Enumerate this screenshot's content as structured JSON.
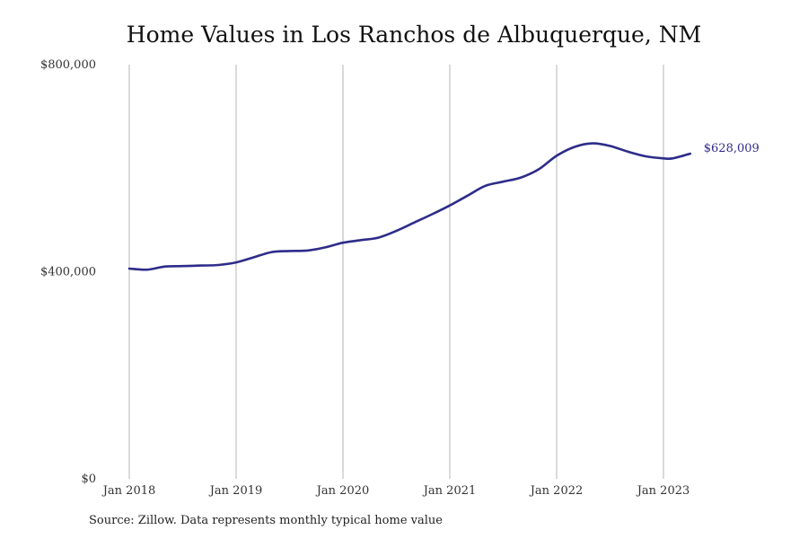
{
  "chart_data": {
    "type": "line",
    "title": "Home Values in Los Ranchos de Albuquerque, NM",
    "xlabel": "",
    "ylabel": "",
    "y_ticks": [
      {
        "value": 0,
        "label": "$0"
      },
      {
        "value": 400000,
        "label": "$400,000"
      },
      {
        "value": 800000,
        "label": "$800,000"
      }
    ],
    "x_ticks": [
      {
        "value": "2018-01",
        "label": "Jan 2018"
      },
      {
        "value": "2019-01",
        "label": "Jan 2019"
      },
      {
        "value": "2020-01",
        "label": "Jan 2020"
      },
      {
        "value": "2021-01",
        "label": "Jan 2021"
      },
      {
        "value": "2022-01",
        "label": "Jan 2022"
      },
      {
        "value": "2023-01",
        "label": "Jan 2023"
      }
    ],
    "xlim": [
      "2018-01",
      "2023-12"
    ],
    "ylim": [
      0,
      800000
    ],
    "grid": "vertical",
    "series": [
      {
        "color": "#2e2c8a",
        "x": [
          "2018-01",
          "2018-03",
          "2018-05",
          "2018-07",
          "2018-09",
          "2018-11",
          "2019-01",
          "2019-03",
          "2019-05",
          "2019-07",
          "2019-09",
          "2019-11",
          "2020-01",
          "2020-03",
          "2020-05",
          "2020-07",
          "2020-09",
          "2020-11",
          "2021-01",
          "2021-03",
          "2021-05",
          "2021-07",
          "2021-09",
          "2021-11",
          "2022-01",
          "2022-03",
          "2022-05",
          "2022-07",
          "2022-09",
          "2022-11",
          "2023-01",
          "2023-02",
          "2023-04"
        ],
        "values": [
          406000,
          404000,
          410000,
          411000,
          412000,
          413000,
          418000,
          428000,
          438000,
          440000,
          441000,
          447000,
          456000,
          461000,
          466000,
          479000,
          495000,
          511000,
          528000,
          547000,
          566000,
          574000,
          582000,
          598000,
          624000,
          641000,
          648000,
          643000,
          632000,
          623000,
          619000,
          619000,
          628009
        ]
      }
    ],
    "end_label": "$628,009"
  },
  "source_note": "Source: Zillow. Data represents monthly typical home value"
}
